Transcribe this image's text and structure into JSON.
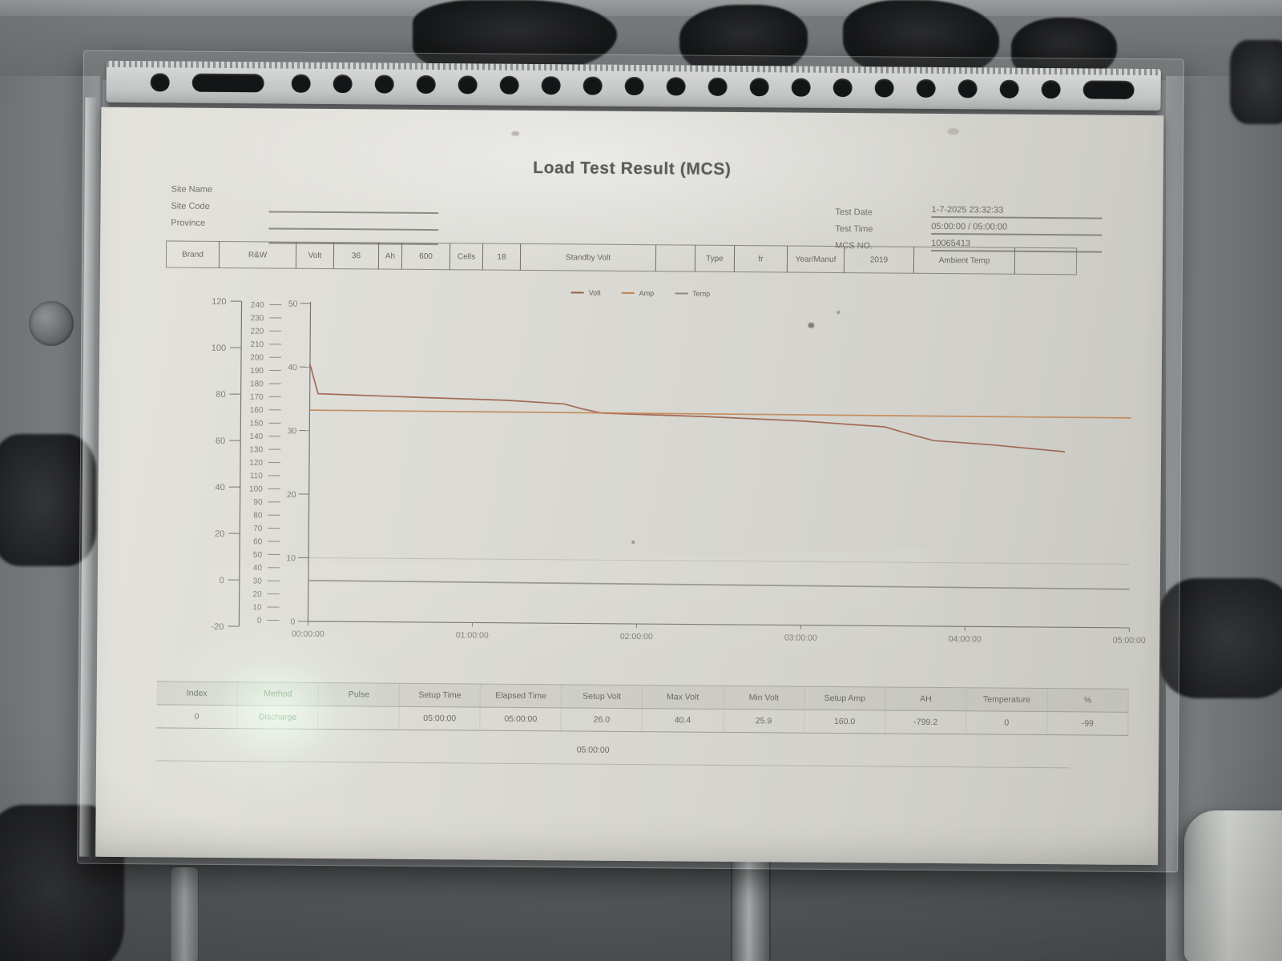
{
  "document": {
    "title": "Load Test Result (MCS)",
    "site_fields": [
      {
        "label": "Site Name",
        "value": ""
      },
      {
        "label": "Site Code",
        "value": ""
      },
      {
        "label": "Province",
        "value": ""
      }
    ],
    "test_fields": [
      {
        "label": "Test Date",
        "value": "1-7-2025 23:32:33"
      },
      {
        "label": "Test Time",
        "value": "05:00:00 / 05:00:00"
      },
      {
        "label": "MCS NO.",
        "value": "10065413"
      }
    ],
    "spec_row": [
      "Brand",
      "R&W",
      "Volt",
      "36",
      "Ah",
      "600",
      "Cells",
      "18",
      "Standby Volt",
      "",
      "Type",
      "fr",
      "Year/Manuf",
      "2019",
      "Ambient Temp",
      ""
    ],
    "results_table": {
      "headers": [
        "Index",
        "Method",
        "Pulse",
        "Setup Time",
        "Elapsed Time",
        "Setup Volt",
        "Max Volt",
        "Min Volt",
        "Setup Amp",
        "AH",
        "Temperature",
        "%"
      ],
      "rows": [
        [
          "0",
          "Discharge",
          "",
          "05:00:00",
          "05:00:00",
          "26.0",
          "40.4",
          "25.9",
          "160.0",
          "-799.2",
          "0",
          "-99"
        ]
      ]
    },
    "footer_time": "05:00:00"
  },
  "chart_data": {
    "type": "line",
    "title": "",
    "legend": [
      "Volt",
      "Amp",
      "Temp"
    ],
    "x_ticks": [
      "00:00:00",
      "01:00:00",
      "02:00:00",
      "03:00:00",
      "04:00:00",
      "05:00:00"
    ],
    "x_range_hours": [
      0,
      5
    ],
    "axes": {
      "temp": {
        "min": -20,
        "max": 120,
        "ticks": [
          120,
          100,
          80,
          60,
          40,
          20,
          0,
          -20
        ]
      },
      "amp": {
        "min": 0,
        "max": 240,
        "ticks": [
          240,
          230,
          220,
          210,
          200,
          190,
          180,
          170,
          160,
          150,
          140,
          130,
          120,
          110,
          100,
          90,
          80,
          70,
          60,
          50,
          40,
          30,
          20,
          10,
          0
        ]
      },
      "volt": {
        "min": 0,
        "max": 50,
        "ticks": [
          50,
          40,
          30,
          20,
          10,
          0
        ]
      }
    },
    "grid": "minimal",
    "legend_position": "top-center",
    "series": [
      {
        "name": "Volt",
        "axis": "volt",
        "color": "#9b5b47",
        "points": [
          [
            0,
            40.4
          ],
          [
            0.05,
            35.8
          ],
          [
            0.6,
            35.4
          ],
          [
            1.2,
            35.0
          ],
          [
            1.55,
            34.5
          ],
          [
            1.65,
            33.8
          ],
          [
            1.78,
            33.1
          ],
          [
            2.4,
            32.7
          ],
          [
            3.0,
            32.1
          ],
          [
            3.5,
            31.3
          ],
          [
            3.65,
            30.2
          ],
          [
            3.8,
            29.2
          ],
          [
            4.15,
            28.6
          ],
          [
            4.6,
            27.6
          ]
        ]
      },
      {
        "name": "Amp",
        "axis": "amp",
        "color": "#c28350",
        "points": [
          [
            0,
            160
          ],
          [
            5.0,
            159
          ]
        ]
      },
      {
        "name": "Temp",
        "axis": "temp",
        "color": "#8a8a82",
        "points": [
          [
            0,
            0
          ],
          [
            5.0,
            -1
          ]
        ]
      }
    ]
  }
}
